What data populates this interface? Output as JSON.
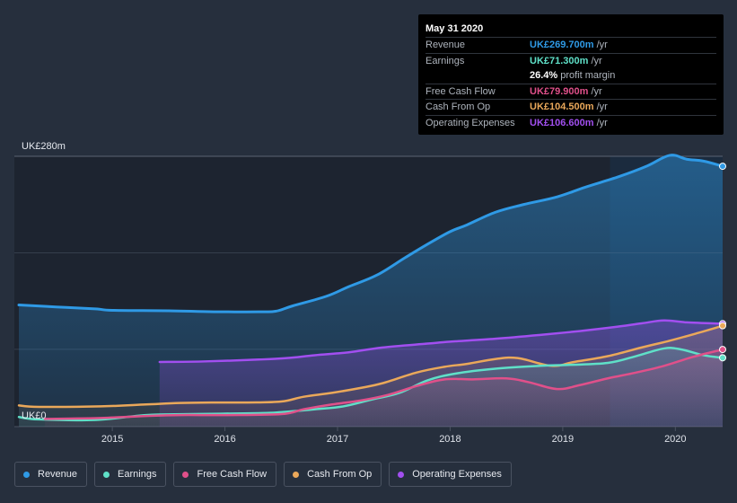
{
  "tooltip": {
    "date": "May 31 2020",
    "rows": [
      {
        "name": "Revenue",
        "value": "UK£269.700m",
        "suffix": "/yr",
        "color": "#2f9ae6"
      },
      {
        "name": "Earnings",
        "value": "UK£71.300m",
        "suffix": "/yr",
        "color": "#5fe0c8"
      },
      {
        "name": "",
        "value": "26.4%",
        "suffix": "profit margin",
        "color": "#ffffff"
      },
      {
        "name": "Free Cash Flow",
        "value": "UK£79.900m",
        "suffix": "/yr",
        "color": "#e0508a"
      },
      {
        "name": "Cash From Op",
        "value": "UK£104.500m",
        "suffix": "/yr",
        "color": "#eaa85a"
      },
      {
        "name": "Operating Expenses",
        "value": "UK£106.600m",
        "suffix": "/yr",
        "color": "#a24ff0"
      }
    ]
  },
  "legend": [
    {
      "label": "Revenue",
      "color": "#2f9ae6"
    },
    {
      "label": "Earnings",
      "color": "#5fe0c8"
    },
    {
      "label": "Free Cash Flow",
      "color": "#e0508a"
    },
    {
      "label": "Cash From Op",
      "color": "#eaa85a"
    },
    {
      "label": "Operating Expenses",
      "color": "#a24ff0"
    }
  ],
  "chart_data": {
    "type": "area",
    "title": "",
    "xlabel": "",
    "ylabel": "",
    "y_max_label": "UK£280m",
    "y_min_label": "UK£0",
    "ylim": [
      0,
      280
    ],
    "xlim": [
      2014.13,
      2020.42
    ],
    "x_ticks": [
      2015,
      2016,
      2017,
      2018,
      2019,
      2020
    ],
    "highlight_from": 2019.42,
    "series": [
      {
        "name": "Revenue",
        "color": "#2f9ae6",
        "fill": true,
        "points": [
          [
            2014.17,
            126
          ],
          [
            2014.5,
            124
          ],
          [
            2014.85,
            122
          ],
          [
            2015.0,
            120.5
          ],
          [
            2015.5,
            120
          ],
          [
            2015.9,
            119
          ],
          [
            2016.3,
            119
          ],
          [
            2016.45,
            119.5
          ],
          [
            2016.6,
            125
          ],
          [
            2016.9,
            135
          ],
          [
            2017.1,
            145
          ],
          [
            2017.35,
            157
          ],
          [
            2017.6,
            175
          ],
          [
            2017.8,
            189
          ],
          [
            2018.0,
            202
          ],
          [
            2018.15,
            209
          ],
          [
            2018.4,
            222
          ],
          [
            2018.65,
            230
          ],
          [
            2018.95,
            238
          ],
          [
            2019.2,
            248
          ],
          [
            2019.5,
            259
          ],
          [
            2019.75,
            270
          ],
          [
            2019.95,
            281
          ],
          [
            2020.1,
            277
          ],
          [
            2020.25,
            275
          ],
          [
            2020.42,
            269.7
          ]
        ]
      },
      {
        "name": "Operating Expenses",
        "color": "#a24ff0",
        "fill": true,
        "points": [
          [
            2015.42,
            67
          ],
          [
            2015.8,
            67.5
          ],
          [
            2016.3,
            69.5
          ],
          [
            2016.55,
            71
          ],
          [
            2016.8,
            74
          ],
          [
            2017.1,
            77
          ],
          [
            2017.4,
            82
          ],
          [
            2017.8,
            86
          ],
          [
            2018.0,
            88
          ],
          [
            2018.4,
            91
          ],
          [
            2018.8,
            95
          ],
          [
            2019.15,
            99
          ],
          [
            2019.45,
            103
          ],
          [
            2019.7,
            107
          ],
          [
            2019.9,
            110
          ],
          [
            2020.1,
            108
          ],
          [
            2020.42,
            106.6
          ]
        ]
      },
      {
        "name": "Cash From Op",
        "color": "#eaa85a",
        "fill": true,
        "points": [
          [
            2014.17,
            22
          ],
          [
            2014.35,
            20.5
          ],
          [
            2014.9,
            21
          ],
          [
            2015.3,
            23
          ],
          [
            2015.6,
            24.5
          ],
          [
            2015.9,
            25
          ],
          [
            2016.2,
            25
          ],
          [
            2016.5,
            26
          ],
          [
            2016.7,
            31
          ],
          [
            2016.95,
            35
          ],
          [
            2017.2,
            40
          ],
          [
            2017.4,
            45
          ],
          [
            2017.7,
            56
          ],
          [
            2017.95,
            62
          ],
          [
            2018.15,
            65
          ],
          [
            2018.4,
            70
          ],
          [
            2018.6,
            71
          ],
          [
            2018.9,
            63
          ],
          [
            2019.1,
            67
          ],
          [
            2019.4,
            73
          ],
          [
            2019.7,
            82
          ],
          [
            2019.95,
            89
          ],
          [
            2020.2,
            97
          ],
          [
            2020.42,
            104.5
          ]
        ]
      },
      {
        "name": "Earnings",
        "color": "#5fe0c8",
        "fill": true,
        "points": [
          [
            2014.17,
            10
          ],
          [
            2014.35,
            7.5
          ],
          [
            2014.85,
            7
          ],
          [
            2015.3,
            12
          ],
          [
            2015.7,
            13
          ],
          [
            2016.3,
            14
          ],
          [
            2016.5,
            15
          ],
          [
            2016.8,
            18
          ],
          [
            2017.05,
            21
          ],
          [
            2017.3,
            28
          ],
          [
            2017.55,
            35
          ],
          [
            2017.8,
            48
          ],
          [
            2018.05,
            55
          ],
          [
            2018.4,
            60
          ],
          [
            2018.8,
            63
          ],
          [
            2019.05,
            64
          ],
          [
            2019.4,
            66
          ],
          [
            2019.65,
            73
          ],
          [
            2019.9,
            81
          ],
          [
            2020.05,
            80
          ],
          [
            2020.25,
            74
          ],
          [
            2020.42,
            71.3
          ]
        ]
      },
      {
        "name": "Free Cash Flow",
        "color": "#e0508a",
        "fill": true,
        "points": [
          [
            2014.4,
            8
          ],
          [
            2014.9,
            9
          ],
          [
            2015.3,
            11
          ],
          [
            2015.6,
            12
          ],
          [
            2016.0,
            12
          ],
          [
            2016.5,
            13
          ],
          [
            2016.7,
            18
          ],
          [
            2016.95,
            23
          ],
          [
            2017.2,
            27
          ],
          [
            2017.45,
            33
          ],
          [
            2017.7,
            42
          ],
          [
            2017.95,
            49
          ],
          [
            2018.2,
            49
          ],
          [
            2018.5,
            50
          ],
          [
            2018.7,
            46
          ],
          [
            2018.95,
            39
          ],
          [
            2019.15,
            43
          ],
          [
            2019.4,
            50
          ],
          [
            2019.65,
            56
          ],
          [
            2019.9,
            63
          ],
          [
            2020.15,
            72
          ],
          [
            2020.42,
            79.9
          ]
        ]
      }
    ]
  }
}
